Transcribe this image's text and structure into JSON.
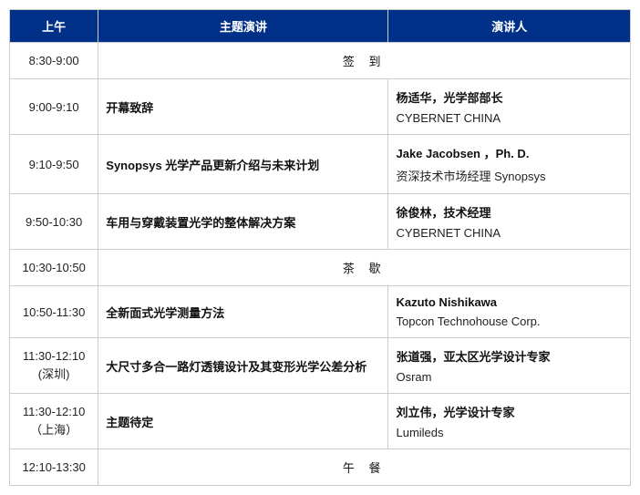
{
  "header": {
    "time": "上午",
    "topic": "主题演讲",
    "speaker": "演讲人"
  },
  "rows": [
    {
      "type": "spanned",
      "time": "8:30-9:00",
      "text": "签 到"
    },
    {
      "type": "session",
      "time": "9:00-9:10",
      "topic": "开幕致辞",
      "speaker": "杨适华，光学部部长",
      "org": "CYBERNET CHINA"
    },
    {
      "type": "session",
      "time": "9:10-9:50",
      "topic": "Synopsys 光学产品更新介绍与未来计划",
      "speaker": "Jake Jacobsen ，Ph. D.",
      "org": "资深技术市场经理 Synopsys"
    },
    {
      "type": "session",
      "time": "9:50-10:30",
      "topic": "车用与穿戴装置光学的整体解决方案",
      "speaker": "徐俊林，技术经理",
      "org": "CYBERNET CHINA"
    },
    {
      "type": "spanned",
      "time": "10:30-10:50",
      "text": "茶 歇"
    },
    {
      "type": "session",
      "time": "10:50-11:30",
      "topic": "全新面式光学测量方法",
      "speaker": "Kazuto Nishikawa",
      "org": "Topcon Technohouse Corp."
    },
    {
      "type": "session",
      "time": "11:30-12:10",
      "time_sub": "(深圳)",
      "topic": "大尺寸多合一路灯透镜设计及其变形光学公差分析",
      "speaker": "张道强，亚太区光学设计专家",
      "org": "Osram"
    },
    {
      "type": "session",
      "time": "11:30-12:10",
      "time_sub": "（上海）",
      "topic": "主题待定",
      "speaker": "刘立伟，光学设计专家",
      "org": "Lumileds"
    },
    {
      "type": "spanned",
      "time": "12:10-13:30",
      "text": "午 餐"
    }
  ],
  "colors": {
    "header_bg": "#003087",
    "header_text": "#ffffff",
    "border": "#cccccc",
    "body_text": "#111111"
  }
}
